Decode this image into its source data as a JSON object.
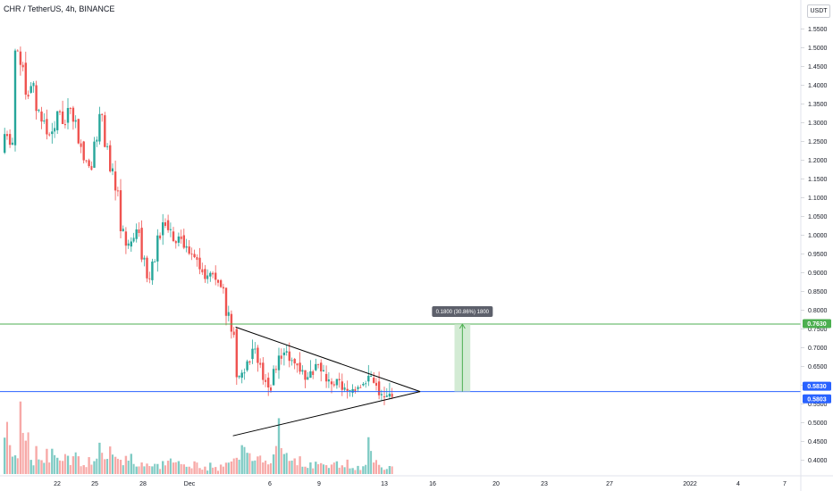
{
  "header": {
    "title": "CHR / TetherUS, 4h, BINANCE",
    "currency": "USDT"
  },
  "colors": {
    "up": "#26a69a",
    "down": "#ef5350",
    "up_volume": "#7fcbc4",
    "down_volume": "#f7a9a7",
    "resistance_line": "#4caf50",
    "support_line": "#2962ff",
    "triangle": "#000000",
    "measure_fill": "#c8e6c9"
  },
  "chart_data": {
    "type": "candlestick",
    "y_axis": {
      "ticks": [
        "1.5500",
        "1.5000",
        "1.4500",
        "1.4000",
        "1.3500",
        "1.3000",
        "1.2500",
        "1.2000",
        "1.1500",
        "1.1000",
        "1.0500",
        "1.0000",
        "0.9500",
        "0.9000",
        "0.8500",
        "0.8000",
        "0.7500",
        "0.7000",
        "0.6500",
        "0.6000",
        "0.5500",
        "0.5000",
        "0.4500",
        "0.4000"
      ],
      "min": 0.38,
      "max": 1.58
    },
    "x_axis": {
      "ticks": [
        "22",
        "25",
        "28",
        "Dec",
        "6",
        "9",
        "13",
        "16",
        "20",
        "23",
        "27",
        "2022",
        "4",
        "7"
      ]
    },
    "path_points": [
      1.22,
      1.27,
      1.24,
      1.49,
      1.46,
      1.38,
      1.4,
      1.33,
      1.31,
      1.27,
      1.28,
      1.33,
      1.3,
      1.34,
      1.31,
      1.25,
      1.2,
      1.18,
      1.25,
      1.32,
      1.24,
      1.17,
      1.12,
      1.01,
      0.97,
      0.99,
      1.02,
      0.94,
      0.88,
      0.93,
      1.0,
      1.04,
      1.01,
      0.98,
      1.0,
      0.97,
      0.95,
      0.94,
      0.91,
      0.89,
      0.9,
      0.88,
      0.86,
      0.79,
      0.75,
      0.62,
      0.64,
      0.67,
      0.7,
      0.66,
      0.62,
      0.6,
      0.64,
      0.68,
      0.69,
      0.67,
      0.66,
      0.64,
      0.62,
      0.64,
      0.66,
      0.63,
      0.61,
      0.6,
      0.61,
      0.59,
      0.58,
      0.59,
      0.6,
      0.61,
      0.62,
      0.61,
      0.57
    ],
    "volume_profile": [
      0.7,
      0.4,
      0.2,
      0.9,
      0.6,
      0.2,
      0.4,
      0.2,
      0.3,
      0.3,
      0.2,
      0.25,
      0.2,
      0.3,
      0.2,
      0.15,
      0.25,
      0.2,
      0.6,
      0.2,
      0.3,
      0.2,
      0.15,
      0.2,
      0.25,
      0.15,
      0.15,
      0.2,
      0.15,
      0.15,
      0.2,
      0.2,
      0.15,
      0.15,
      0.15,
      0.1,
      0.15,
      0.1,
      0.1,
      0.15,
      0.1,
      0.1,
      0.15,
      0.2,
      0.3,
      0.55,
      0.4,
      0.2,
      0.25,
      0.2,
      0.2,
      0.4,
      0.6,
      0.3,
      0.25,
      0.2,
      0.2,
      0.15,
      0.15,
      0.15,
      0.2,
      0.15,
      0.15,
      0.15,
      0.1,
      0.15,
      0.1,
      0.1,
      0.15,
      0.4,
      0.2,
      0.1,
      0.08
    ],
    "horizontal_lines": [
      {
        "name": "resistance",
        "value": 0.763,
        "label": "0.7630",
        "color": "#4caf50"
      },
      {
        "name": "current",
        "value": 0.583,
        "label": "0.5830",
        "color": "#2962ff"
      },
      {
        "name": "close",
        "value": 0.5803,
        "label": "0.5803",
        "color": "#2962ff"
      }
    ],
    "triangle": {
      "start_index": 44,
      "upper_start": 0.755,
      "lower_start": 0.465,
      "apex_index": 79,
      "apex_value": 0.583
    },
    "measurement": {
      "label": "0.1800 (30.86%) 1800",
      "from": 0.583,
      "to": 0.763,
      "x_start_index": 85,
      "x_end_index": 88
    }
  }
}
